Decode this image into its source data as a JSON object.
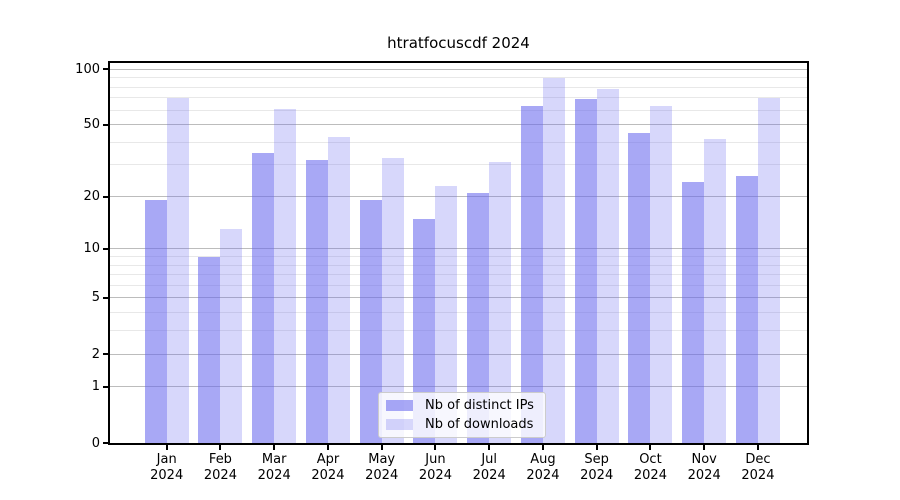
{
  "chart_data": {
    "type": "bar",
    "title": "htratfocuscdf 2024",
    "categories": [
      "Jan",
      "Feb",
      "Mar",
      "Apr",
      "May",
      "Jun",
      "Jul",
      "Aug",
      "Sep",
      "Oct",
      "Nov",
      "Dec"
    ],
    "category_sublabel": "2024",
    "series": [
      {
        "name": "Nb of distinct IPs",
        "base_color": "#6666ee",
        "alpha": 0.57,
        "values": [
          19,
          9,
          35,
          32,
          19,
          15,
          21,
          63,
          69,
          45,
          24,
          26
        ]
      },
      {
        "name": "Nb of downloads",
        "base_color": "#6666ee",
        "alpha": 0.26,
        "values": [
          70,
          13,
          61,
          43,
          33,
          23,
          31,
          90,
          78,
          63,
          42,
          70
        ]
      }
    ],
    "xlabel": "",
    "ylabel": "",
    "yscale": "log1p",
    "ylim": [
      0,
      111
    ],
    "yticks_major": [
      0,
      1,
      2,
      5,
      10,
      20,
      50,
      100
    ],
    "yticks_minor": [
      3,
      4,
      6,
      7,
      8,
      9,
      30,
      40,
      60,
      70,
      80,
      90
    ],
    "grid": true,
    "legend_position": "lower center",
    "colors": {
      "grid_major": "#bcbcbc",
      "grid_minor": "#e8e8e8",
      "axis": "#000000",
      "text": "#000000"
    }
  }
}
